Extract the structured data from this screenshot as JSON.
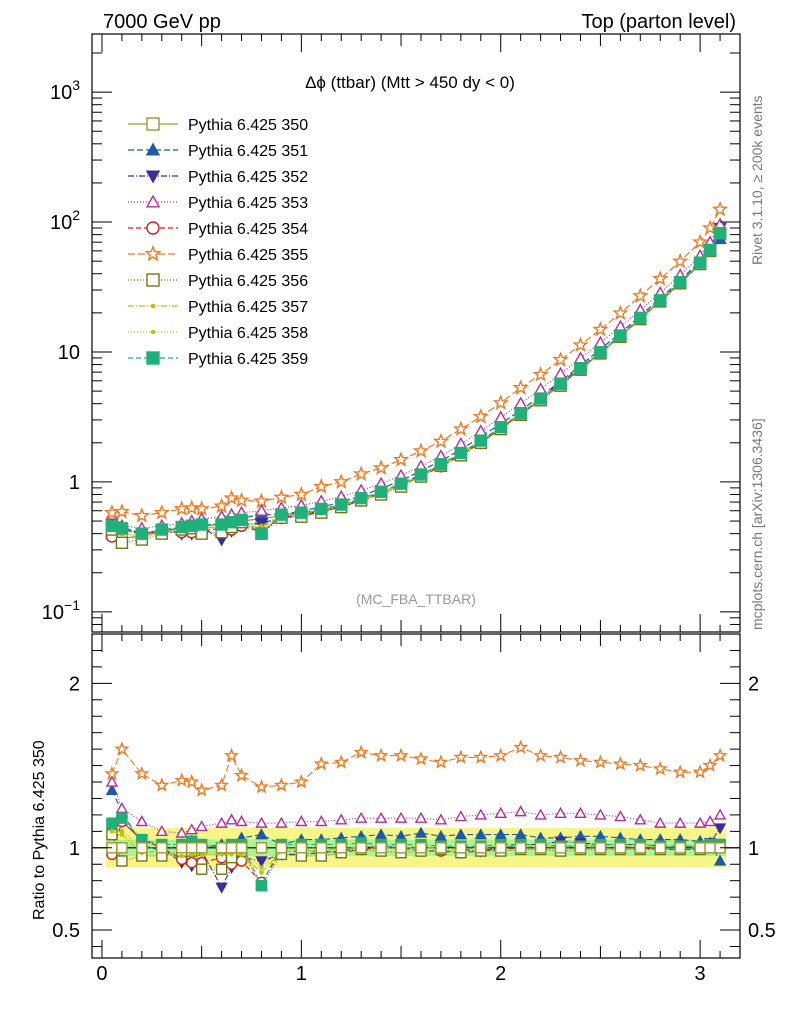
{
  "header": {
    "left": "7000 GeV pp",
    "right": "Top (parton level)"
  },
  "side_labels": {
    "top": "Rivet 3.1.10, ≥ 200k events",
    "bottom": "mcplots.cern.ch [arXiv:1306.3436]"
  },
  "chart_data": {
    "type": "line",
    "title": "Δϕ (ttbar) (Mtt > 450 dy < 0)",
    "watermark": "(MC_FBA_TTBAR)",
    "ylabel_ratio": "Ratio to Pythia 6.425 350",
    "xlim": [
      -0.05,
      3.2
    ],
    "ylim_main": [
      0.07,
      2800
    ],
    "ylim_ratio": [
      0.33,
      2.3
    ],
    "log_y_main": true,
    "grid": false,
    "legend_position": "top-left",
    "x_ticks": [
      0,
      1,
      2,
      3
    ],
    "y_ticks_main": [
      {
        "value": 0.1,
        "base": "10",
        "exp": "−1"
      },
      {
        "value": 1,
        "base": "1",
        "exp": ""
      },
      {
        "value": 10,
        "base": "10",
        "exp": ""
      },
      {
        "value": 100,
        "base": "10",
        "exp": "2"
      },
      {
        "value": 1000,
        "base": "10",
        "exp": "3"
      }
    ],
    "y_ticks_ratio": [
      0.5,
      1,
      2
    ],
    "x": [
      0.05,
      0.1,
      0.2,
      0.3,
      0.4,
      0.45,
      0.5,
      0.6,
      0.65,
      0.7,
      0.8,
      0.9,
      1.0,
      1.1,
      1.2,
      1.3,
      1.4,
      1.5,
      1.6,
      1.7,
      1.8,
      1.9,
      2.0,
      2.1,
      2.2,
      2.3,
      2.4,
      2.5,
      2.6,
      2.7,
      2.8,
      2.9,
      3.0,
      3.05,
      3.1
    ],
    "series": [
      {
        "name": "Pythia 6.425 350",
        "color": "#9a9a2a",
        "marker": "square-open",
        "dash": "",
        "values": [
          0.4,
          0.37,
          0.38,
          0.42,
          0.44,
          0.45,
          0.46,
          0.47,
          0.48,
          0.5,
          0.52,
          0.55,
          0.57,
          0.61,
          0.66,
          0.73,
          0.82,
          0.95,
          1.12,
          1.35,
          1.65,
          2.05,
          2.6,
          3.3,
          4.3,
          5.6,
          7.4,
          9.8,
          13.2,
          18.0,
          24.7,
          34.0,
          48.0,
          60.0,
          80.0
        ]
      },
      {
        "name": "Pythia 6.425 351",
        "color": "#1e5aa8",
        "marker": "triangle-up",
        "dash": "6,3",
        "values": [
          0.54,
          0.45,
          0.4,
          0.41,
          0.45,
          0.47,
          0.46,
          0.48,
          0.47,
          0.53,
          0.56,
          0.56,
          0.6,
          0.64,
          0.7,
          0.78,
          0.89,
          1.02,
          1.22,
          1.45,
          1.78,
          2.22,
          2.8,
          3.56,
          4.56,
          5.94,
          7.9,
          10.5,
          14.0,
          19.0,
          25.9,
          35.6,
          49.9,
          62.0,
          74.0
        ]
      },
      {
        "name": "Pythia 6.425 352",
        "color": "#3b2d9b",
        "marker": "triangle-down",
        "dash": "6,2,1,2",
        "values": [
          0.44,
          0.43,
          0.4,
          0.42,
          0.4,
          0.4,
          0.45,
          0.36,
          0.42,
          0.47,
          0.48,
          0.53,
          0.55,
          0.59,
          0.65,
          0.73,
          0.83,
          0.95,
          1.12,
          1.35,
          1.63,
          2.0,
          2.6,
          3.35,
          4.4,
          5.8,
          7.6,
          10.0,
          13.5,
          18.3,
          25.0,
          34.5,
          48.5,
          62.0,
          90.0
        ]
      },
      {
        "name": "Pythia 6.425 353",
        "color": "#b0309a",
        "marker": "triangle-open",
        "dash": "1,2",
        "values": [
          0.56,
          0.46,
          0.44,
          0.46,
          0.48,
          0.5,
          0.52,
          0.54,
          0.56,
          0.58,
          0.6,
          0.63,
          0.66,
          0.71,
          0.77,
          0.86,
          0.97,
          1.12,
          1.32,
          1.58,
          1.96,
          2.46,
          3.14,
          4.02,
          5.18,
          6.8,
          8.95,
          11.8,
          15.7,
          21.0,
          28.5,
          39.0,
          55.0,
          70.0,
          96.0
        ]
      },
      {
        "name": "Pythia 6.425 354",
        "color": "#d42020",
        "marker": "circle-open",
        "dash": "5,3",
        "values": [
          0.38,
          0.43,
          0.4,
          0.42,
          0.41,
          0.41,
          0.42,
          0.44,
          0.43,
          0.46,
          0.41,
          0.54,
          0.56,
          0.6,
          0.64,
          0.72,
          0.82,
          0.95,
          1.1,
          1.32,
          1.6,
          2.0,
          2.57,
          3.3,
          4.3,
          5.6,
          7.4,
          9.8,
          13.2,
          18.0,
          24.5,
          33.7,
          47.5,
          60.0,
          82.0
        ]
      },
      {
        "name": "Pythia 6.425 355",
        "color": "#f07820",
        "marker": "star-open",
        "dash": "7,3",
        "values": [
          0.58,
          0.59,
          0.55,
          0.58,
          0.62,
          0.63,
          0.62,
          0.65,
          0.75,
          0.72,
          0.71,
          0.76,
          0.8,
          0.92,
          1.0,
          1.15,
          1.28,
          1.48,
          1.73,
          2.05,
          2.55,
          3.18,
          4.05,
          5.3,
          6.7,
          8.7,
          11.3,
          14.9,
          19.9,
          27.0,
          36.6,
          49.8,
          70.0,
          90.0,
          125.0
        ]
      },
      {
        "name": "Pythia 6.425 356",
        "color": "#6f7a10",
        "marker": "square-open",
        "dash": "1,2",
        "values": [
          0.43,
          0.34,
          0.36,
          0.4,
          0.43,
          0.44,
          0.4,
          0.41,
          0.45,
          0.49,
          0.4,
          0.53,
          0.54,
          0.58,
          0.64,
          0.72,
          0.8,
          0.92,
          1.1,
          1.33,
          1.6,
          2.0,
          2.55,
          3.28,
          4.25,
          5.5,
          7.3,
          9.75,
          13.1,
          17.9,
          24.5,
          33.8,
          47.5,
          60.0,
          82.0
        ]
      },
      {
        "name": "Pythia 6.425 357",
        "color": "#c8c000",
        "marker": "dot",
        "dash": "6,2,1,2",
        "values": [
          0.44,
          0.4,
          0.37,
          0.41,
          0.42,
          0.43,
          0.44,
          0.45,
          0.46,
          0.48,
          0.44,
          0.54,
          0.56,
          0.6,
          0.66,
          0.73,
          0.82,
          0.95,
          1.12,
          1.35,
          1.64,
          2.04,
          2.62,
          3.34,
          4.34,
          5.64,
          7.46,
          9.86,
          13.3,
          18.1,
          24.8,
          34.2,
          48.2,
          61.0,
          82.0
        ]
      },
      {
        "name": "Pythia 6.425 358",
        "color": "#a8c820",
        "marker": "dot",
        "dash": "1,2",
        "values": [
          0.45,
          0.41,
          0.38,
          0.42,
          0.43,
          0.44,
          0.45,
          0.45,
          0.47,
          0.49,
          0.46,
          0.55,
          0.57,
          0.61,
          0.66,
          0.74,
          0.83,
          0.96,
          1.13,
          1.36,
          1.66,
          2.06,
          2.62,
          3.35,
          4.35,
          5.66,
          7.48,
          9.9,
          13.3,
          18.2,
          24.9,
          34.3,
          48.5,
          61.0,
          82.0
        ]
      },
      {
        "name": "Pythia 6.425 359",
        "color": "#20b07a",
        "marker": "square-solid",
        "dash": "5,3",
        "values": [
          0.46,
          0.44,
          0.4,
          0.43,
          0.45,
          0.46,
          0.47,
          0.47,
          0.49,
          0.51,
          0.4,
          0.56,
          0.58,
          0.62,
          0.67,
          0.75,
          0.84,
          0.97,
          1.14,
          1.37,
          1.67,
          2.08,
          2.64,
          3.37,
          4.38,
          5.68,
          7.5,
          9.95,
          13.4,
          18.3,
          25.0,
          34.5,
          48.7,
          61.0,
          82.0
        ]
      }
    ],
    "ratio_band": {
      "inner": [
        0.95,
        1.05
      ],
      "outer": [
        0.88,
        1.12
      ]
    },
    "ratio_series": [
      {
        "name": "Pythia 6.425 351",
        "values": [
          1.35,
          1.22,
          1.02,
          0.98,
          1.02,
          1.04,
          1.0,
          1.02,
          0.98,
          1.06,
          1.08,
          1.02,
          1.05,
          1.05,
          1.06,
          1.07,
          1.08,
          1.07,
          1.09,
          1.07,
          1.08,
          1.08,
          1.08,
          1.08,
          1.06,
          1.06,
          1.07,
          1.07,
          1.06,
          1.05,
          1.05,
          1.05,
          1.04,
          1.03,
          0.92
        ]
      },
      {
        "name": "Pythia 6.425 352",
        "values": [
          1.1,
          1.16,
          1.05,
          1.0,
          0.91,
          0.89,
          0.98,
          0.76,
          0.88,
          0.94,
          0.92,
          0.96,
          0.96,
          0.97,
          0.98,
          1.0,
          1.01,
          1.0,
          1.0,
          1.0,
          0.99,
          0.98,
          1.0,
          1.02,
          1.02,
          1.04,
          1.03,
          1.02,
          1.02,
          1.02,
          1.01,
          1.01,
          1.01,
          1.03,
          1.12
        ]
      },
      {
        "name": "Pythia 6.425 353",
        "values": [
          1.4,
          1.24,
          1.16,
          1.1,
          1.09,
          1.11,
          1.13,
          1.15,
          1.17,
          1.16,
          1.15,
          1.15,
          1.16,
          1.16,
          1.17,
          1.18,
          1.18,
          1.18,
          1.18,
          1.17,
          1.19,
          1.2,
          1.21,
          1.22,
          1.2,
          1.21,
          1.21,
          1.2,
          1.19,
          1.17,
          1.15,
          1.15,
          1.15,
          1.16,
          1.2
        ]
      },
      {
        "name": "Pythia 6.425 354",
        "values": [
          0.96,
          1.16,
          1.05,
          1.0,
          0.93,
          0.91,
          0.91,
          0.94,
          0.9,
          0.92,
          0.79,
          0.98,
          0.98,
          0.98,
          0.97,
          0.99,
          1.0,
          1.0,
          0.98,
          0.98,
          0.97,
          0.98,
          0.99,
          1.0,
          1.0,
          1.0,
          1.0,
          1.0,
          1.0,
          1.0,
          0.99,
          0.99,
          0.99,
          1.0,
          1.02
        ]
      },
      {
        "name": "Pythia 6.425 355",
        "values": [
          1.45,
          1.6,
          1.45,
          1.38,
          1.41,
          1.4,
          1.35,
          1.38,
          1.56,
          1.44,
          1.37,
          1.38,
          1.4,
          1.51,
          1.52,
          1.58,
          1.56,
          1.56,
          1.54,
          1.52,
          1.55,
          1.55,
          1.56,
          1.61,
          1.56,
          1.55,
          1.53,
          1.52,
          1.51,
          1.5,
          1.48,
          1.46,
          1.46,
          1.5,
          1.56
        ]
      },
      {
        "name": "Pythia 6.425 356",
        "values": [
          1.08,
          0.92,
          0.95,
          0.95,
          0.98,
          0.98,
          0.87,
          0.87,
          0.94,
          0.98,
          0.77,
          0.96,
          0.95,
          0.95,
          0.97,
          0.99,
          0.98,
          0.97,
          0.98,
          0.99,
          0.97,
          0.98,
          0.98,
          0.99,
          0.99,
          0.98,
          0.99,
          0.99,
          0.99,
          0.99,
          0.99,
          0.99,
          0.99,
          1.0,
          1.02
        ]
      },
      {
        "name": "Pythia 6.425 357",
        "values": [
          1.1,
          1.08,
          0.97,
          0.98,
          0.95,
          0.96,
          0.96,
          0.96,
          0.96,
          0.96,
          0.85,
          0.98,
          0.98,
          0.98,
          1.0,
          1.0,
          1.0,
          1.0,
          1.0,
          1.0,
          0.99,
          1.0,
          1.01,
          1.01,
          1.01,
          1.01,
          1.01,
          1.01,
          1.01,
          1.01,
          1.0,
          1.01,
          1.0,
          1.02,
          1.02
        ]
      },
      {
        "name": "Pythia 6.425 358",
        "values": [
          1.12,
          1.1,
          1.0,
          1.0,
          0.98,
          0.98,
          0.98,
          0.96,
          0.98,
          0.98,
          0.88,
          1.0,
          1.0,
          1.0,
          1.0,
          1.01,
          1.01,
          1.01,
          1.01,
          1.01,
          1.01,
          1.0,
          1.01,
          1.02,
          1.01,
          1.01,
          1.01,
          1.01,
          1.01,
          1.01,
          1.01,
          1.01,
          1.01,
          1.02,
          1.02
        ]
      },
      {
        "name": "Pythia 6.425 359",
        "values": [
          1.15,
          1.18,
          1.05,
          1.02,
          1.02,
          1.04,
          1.02,
          1.0,
          1.02,
          1.02,
          0.77,
          1.02,
          1.02,
          1.02,
          1.02,
          1.03,
          1.02,
          1.02,
          1.02,
          1.01,
          1.01,
          1.01,
          1.02,
          1.02,
          1.02,
          1.01,
          1.01,
          1.02,
          1.02,
          1.02,
          1.01,
          1.01,
          1.01,
          1.02,
          1.02
        ]
      }
    ]
  }
}
